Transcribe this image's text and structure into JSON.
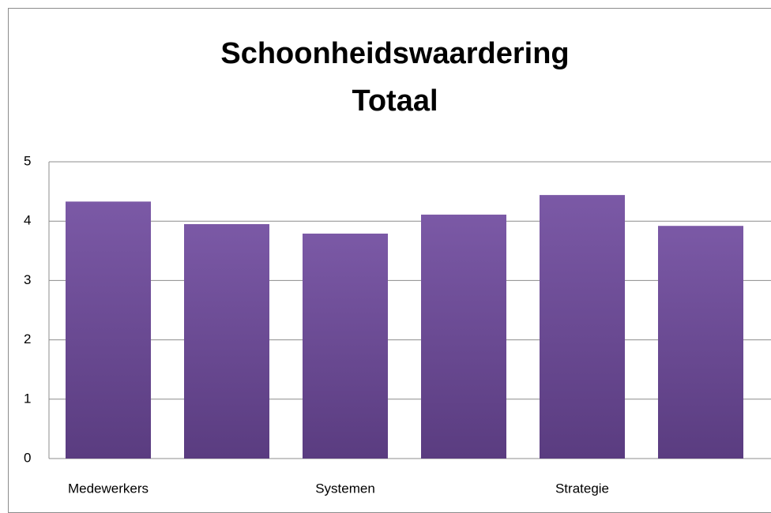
{
  "chart_data": {
    "type": "bar",
    "title": "Schoonheidswaardering Totaal",
    "categories": [
      "Medewerkers",
      null,
      "Systemen",
      null,
      "Strategie",
      null
    ],
    "values": [
      4.33,
      3.95,
      3.79,
      4.11,
      4.44,
      3.92
    ],
    "color": "#7b59a6",
    "ylim": [
      0,
      5
    ],
    "yticks": [
      0,
      1,
      2,
      3,
      4,
      5
    ],
    "grid": true
  }
}
